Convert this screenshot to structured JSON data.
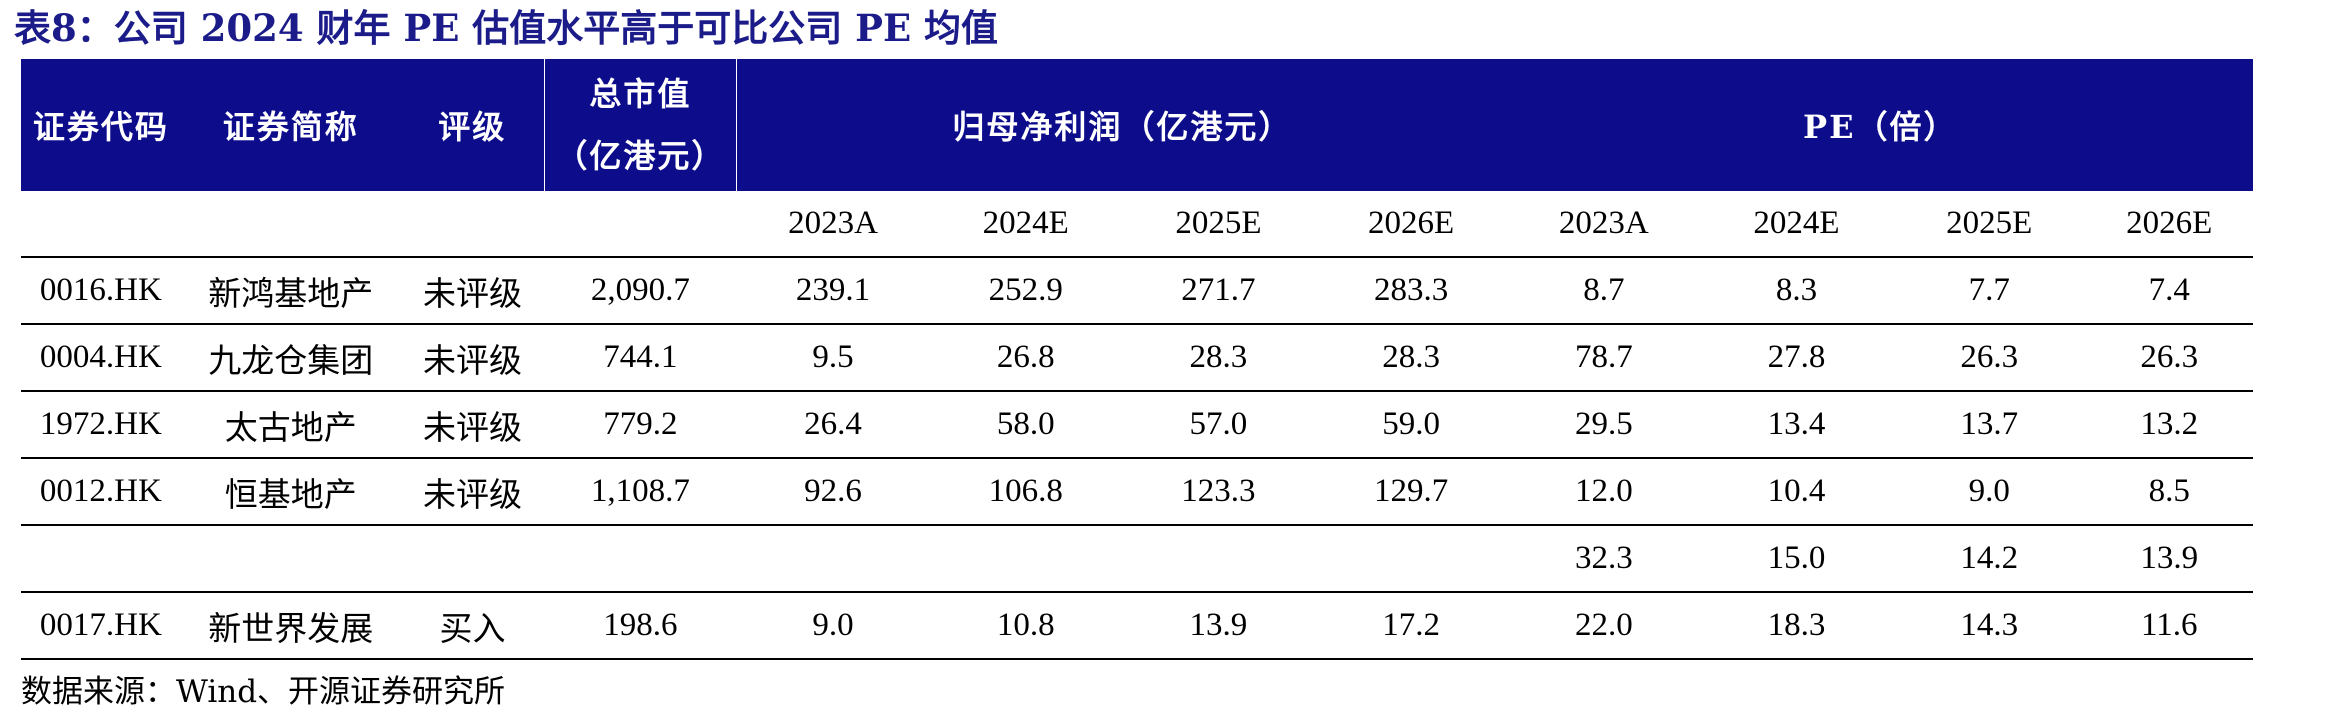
{
  "title": "表8：公司 2024 财年 PE 估值水平高于可比公司 PE 均值",
  "header": {
    "code": "证券代码",
    "name": "证券简称",
    "rating": "评级",
    "mktcap_line1": "总市值",
    "mktcap_line2": "（亿港元）",
    "profit": "归母净利润（亿港元）",
    "pe": "PE（倍）"
  },
  "years": [
    "2023A",
    "2024E",
    "2025E",
    "2026E",
    "2023A",
    "2024E",
    "2025E",
    "2026E"
  ],
  "rows": [
    {
      "code": "0016.HK",
      "name": "新鸿基地产",
      "rating": "未评级",
      "mktcap": "2,090.7",
      "profit": [
        "239.1",
        "252.9",
        "271.7",
        "283.3"
      ],
      "pe": [
        "8.7",
        "8.3",
        "7.7",
        "7.4"
      ]
    },
    {
      "code": "0004.HK",
      "name": "九龙仓集团",
      "rating": "未评级",
      "mktcap": "744.1",
      "profit": [
        "9.5",
        "26.8",
        "28.3",
        "28.3"
      ],
      "pe": [
        "78.7",
        "27.8",
        "26.3",
        "26.3"
      ]
    },
    {
      "code": "1972.HK",
      "name": "太古地产",
      "rating": "未评级",
      "mktcap": "779.2",
      "profit": [
        "26.4",
        "58.0",
        "57.0",
        "59.0"
      ],
      "pe": [
        "29.5",
        "13.4",
        "13.7",
        "13.2"
      ]
    },
    {
      "code": "0012.HK",
      "name": "恒基地产",
      "rating": "未评级",
      "mktcap": "1,108.7",
      "profit": [
        "92.6",
        "106.8",
        "123.3",
        "129.7"
      ],
      "pe": [
        "12.0",
        "10.4",
        "9.0",
        "8.5"
      ]
    },
    {
      "code": "",
      "name": "",
      "rating": "",
      "mktcap": "",
      "profit": [
        "",
        "",
        "",
        ""
      ],
      "pe": [
        "32.3",
        "15.0",
        "14.2",
        "13.9"
      ]
    },
    {
      "code": "0017.HK",
      "name": "新世界发展",
      "rating": "买入",
      "mktcap": "198.6",
      "profit": [
        "9.0",
        "10.8",
        "13.9",
        "17.2"
      ],
      "pe": [
        "22.0",
        "18.3",
        "14.3",
        "11.6"
      ]
    }
  ],
  "source": "数据来源：Wind、开源证券研究所",
  "colors": {
    "header_bg": "#0d0d8c",
    "title": "#1b1b8a"
  }
}
